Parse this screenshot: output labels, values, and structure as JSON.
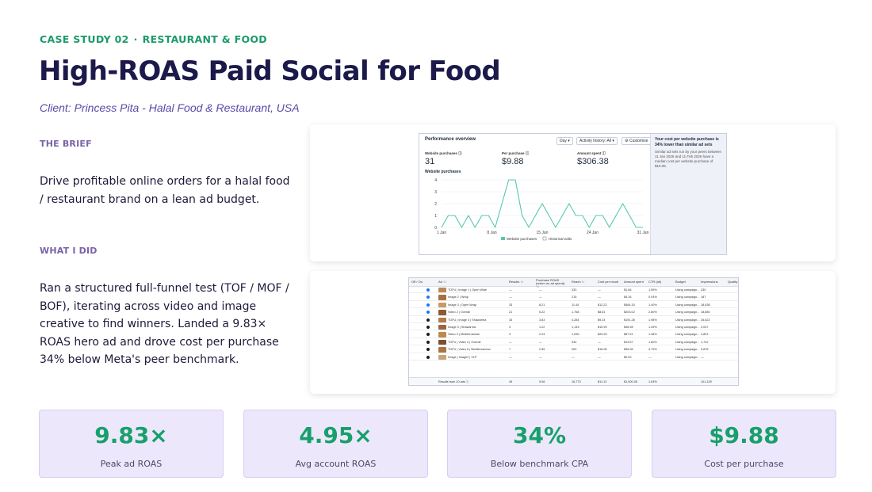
{
  "header": {
    "eyebrow_left": "CASE STUDY 02",
    "eyebrow_sep": "·",
    "eyebrow_right": "RESTAURANT & FOOD",
    "title": "High-ROAS Paid Social for Food",
    "client": "Client: Princess Pita - Halal Food & Restaurant, USA"
  },
  "brief": {
    "label": "THE BRIEF",
    "text": "Drive profitable online orders for a halal food / restaurant brand on a lean ad budget."
  },
  "did": {
    "label": "WHAT I DID",
    "text": "Ran a structured full-funnel test (TOF / MOF / BOF), iterating across video and image creative to find winners. Landed a 9.83× ROAS hero ad and drove cost per purchase 34% below Meta's peer benchmark."
  },
  "performance": {
    "title": "Performance overview",
    "controls": [
      "Day ▾",
      "Activity history: All ▾",
      "⚙ Customise"
    ],
    "metrics": [
      {
        "label": "Website purchases ⓘ",
        "value": "31"
      },
      {
        "label": "Per purchase ⓘ",
        "value": "$9.88"
      },
      {
        "label": "Amount spent ⓘ",
        "value": "$306.38"
      }
    ],
    "side_title": "Your cost per website purchase is 34% lower than similar ad sets",
    "side_text": "Similar ad sets run by your peers between 11 Jan 2026 and 11 Feb 2026 have a median cost per website purchase of $15.05.",
    "chart_label": "Website purchases",
    "legend": [
      "Website purchases",
      "Historical edits"
    ],
    "chart_data": {
      "type": "line",
      "title": "Website purchases",
      "x_tick_labels": [
        "1 Jan",
        "8 Jan",
        "15 Jan",
        "24 Jan",
        "31 Jan"
      ],
      "y_tick_labels": [
        "0",
        "1",
        "2",
        "3",
        "4"
      ],
      "ylim": [
        0,
        4
      ],
      "series": [
        {
          "name": "Website purchases",
          "values": [
            0,
            1,
            1,
            0,
            1,
            0,
            1,
            1,
            0,
            2,
            4,
            4,
            1,
            0,
            1,
            2,
            1,
            0,
            1,
            2,
            1,
            1,
            0,
            1,
            1,
            0,
            1,
            2,
            1,
            0,
            0
          ]
        }
      ],
      "color": "#57c7b0"
    }
  },
  "ads_table": {
    "headers": [
      "Off / On",
      "Ad ↑↓",
      "Results ↑↓",
      "Purchase ROAS (return on ad spend) ↑↓",
      "Reach ↑↓",
      "Cost per result",
      "Amount spent",
      "CTR (all)",
      "Budget",
      "Impressions",
      "Quality"
    ],
    "rows": [
      {
        "name": "TOFU | Image 1 | Open Wide",
        "results": "—",
        "roas": "—",
        "reach": "333",
        "cpr": "—",
        "spent": "$1.66",
        "ctr": "1.59%",
        "budget": "Using campaign...",
        "impr": "330"
      },
      {
        "name": "Image 2 | Wrap",
        "results": "—",
        "roas": "—",
        "reach": "215",
        "cpr": "—",
        "spent": "$4.16",
        "ctr": "0.93%",
        "budget": "Using campaign...",
        "impr": "187"
      },
      {
        "name": "Image 3 | Open Wrap",
        "results": "33",
        "roas": "8.21",
        "reach": "11.44",
        "cpr": "$12.22",
        "spent": "$464.15",
        "ctr": "1.40%",
        "budget": "Using campaign...",
        "impr": "18,638"
      },
      {
        "name": "Video 2 | Overall",
        "results": "21",
        "roas": "5.22",
        "reach": "1,768",
        "cpr": "$8.61",
        "spent": "$203.02",
        "ctr": "2.80%",
        "budget": "Using campaign...",
        "impr": "18,880"
      },
      {
        "name": "TOFU | Image 3 | Shawarma",
        "results": "33",
        "roas": "3.83",
        "reach": "4,284",
        "cpr": "$9.24",
        "spent": "$191.28",
        "ctr": "1.98%",
        "budget": "Using campaign...",
        "impr": "26,622"
      },
      {
        "name": "Image 3 | Shawarma",
        "results": "3",
        "roas": "1.22",
        "reach": "1,143",
        "cpr": "$15.99",
        "spent": "$48.98",
        "ctr": "1.49%",
        "budget": "Using campaign...",
        "impr": "3,037"
      },
      {
        "name": "Video 3 | Mediterranean",
        "results": "3",
        "roas": "2.24",
        "reach": "1,096",
        "cpr": "$25.26",
        "spent": "$87.51",
        "ctr": "1.48%",
        "budget": "Using campaign...",
        "impr": "4,891"
      },
      {
        "name": "TOFU | Video 4 | Overall",
        "results": "—",
        "roas": "—",
        "reach": "334",
        "cpr": "—",
        "spent": "$13.67",
        "ctr": "1.80%",
        "budget": "Using campaign...",
        "impr": "1,742"
      },
      {
        "name": "TOFU | Video 5 | Mediterranean",
        "results": "7",
        "roas": "2.85",
        "reach": "900",
        "cpr": "$18.96",
        "spent": "$36.96",
        "ctr": "4.79%",
        "budget": "Using campaign...",
        "impr": "5,878"
      },
      {
        "name": "Image | Image2 | VLP",
        "results": "—",
        "roas": "—",
        "reach": "—",
        "cpr": "—",
        "spent": "$0.00",
        "ctr": "—",
        "budget": "Using campaign...",
        "impr": "—"
      }
    ],
    "footer": {
      "name": "Results from 10 ads ⓘ",
      "results": "49",
      "roas": "5.06",
      "reach": "16,773",
      "cpr": "$11.12",
      "spent": "$1,000.45",
      "ctr": "1.63%",
      "impr": "101,129"
    }
  },
  "stats": [
    {
      "value": "9.83×",
      "label": "Peak ad ROAS"
    },
    {
      "value": "4.95×",
      "label": "Avg account ROAS"
    },
    {
      "value": "34%",
      "label": "Below benchmark CPA"
    },
    {
      "value": "$9.88",
      "label": "Cost per purchase"
    }
  ],
  "colors": {
    "accent_green": "#17a06b",
    "title_navy": "#1c1a4a",
    "purple": "#5b48a8",
    "stat_bg": "#ede7fb",
    "line": "#57c7b0"
  }
}
